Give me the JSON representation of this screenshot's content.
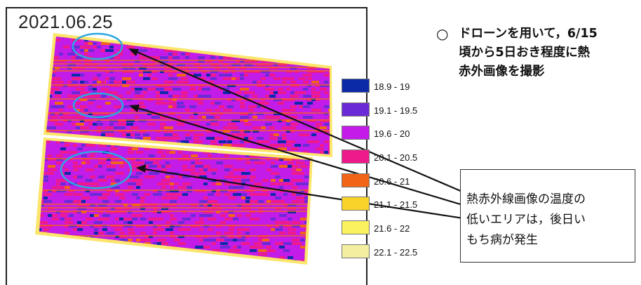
{
  "date_label": "2021.06.25",
  "legend": [
    {
      "label": "18.9 - 19",
      "color": "#0b2aa8"
    },
    {
      "label": "19.1 - 19.5",
      "color": "#6a2bd6"
    },
    {
      "label": "19.6 - 20",
      "color": "#c31be8"
    },
    {
      "label": "20.1 - 20.5",
      "color": "#ee1a8c"
    },
    {
      "label": "20.6 - 21",
      "color": "#f26417"
    },
    {
      "label": "21.1 - 21.5",
      "color": "#f9d32a"
    },
    {
      "label": "21.6 - 22",
      "color": "#fbf25f"
    },
    {
      "label": "22.1 - 22.5",
      "color": "#f3eea0"
    }
  ],
  "note": {
    "bullet": "○",
    "text": "ドローンを用いて，6/15\n頃から5日おき程度に熱\n赤外画像を撮影"
  },
  "callout": {
    "text": "熱赤外線画像の温度の\n低いエリアは，後日い\nもち病が発生"
  },
  "colors": {
    "highlight_circle": "#2aa8e0",
    "arrow": "#111111"
  }
}
